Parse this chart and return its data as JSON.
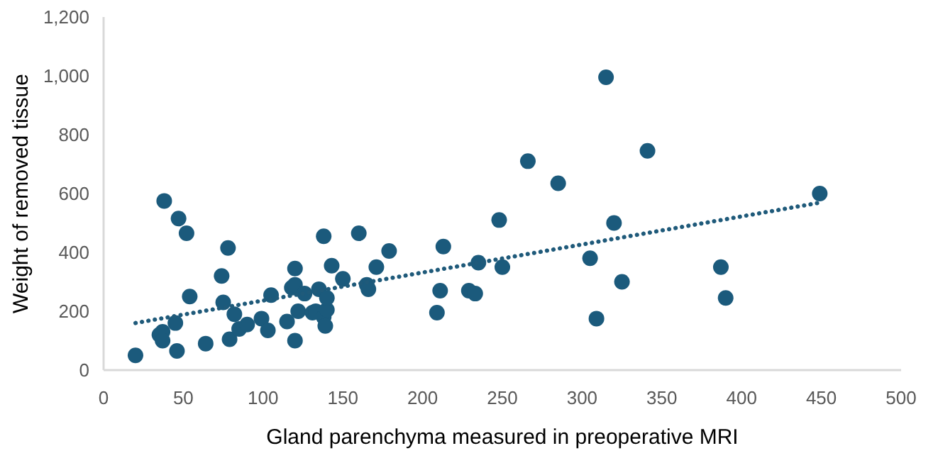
{
  "chart_data": {
    "type": "scatter",
    "xlabel": "Gland parenchyma measured in preoperative MRI",
    "ylabel": "Weight of removed tissue",
    "xlim": [
      0,
      500
    ],
    "xticks": [
      0,
      50,
      100,
      150,
      200,
      250,
      300,
      350,
      400,
      450,
      500
    ],
    "ylim": [
      0,
      1200
    ],
    "yticks": [
      0,
      {
        "value": 200,
        "label": "200"
      },
      400,
      600,
      800,
      {
        "value": 1000,
        "label": "1,000"
      },
      {
        "value": 1200,
        "label": "1,200"
      }
    ],
    "grid": false,
    "series": [
      {
        "color": "#1b5a7c",
        "marker": "circle",
        "x": [
          20,
          35,
          37,
          37,
          38,
          45,
          46,
          47,
          52,
          54,
          64,
          74,
          75,
          78,
          79,
          82,
          85,
          90,
          99,
          103,
          105,
          115,
          118,
          120,
          120,
          120,
          122,
          126,
          131,
          133,
          135,
          138,
          138,
          139,
          140,
          140,
          143,
          150,
          160,
          165,
          166,
          171,
          179,
          209,
          211,
          213,
          229,
          233,
          235,
          248,
          250,
          266,
          285,
          305,
          309,
          315,
          320,
          325,
          341,
          387,
          390,
          449
        ],
        "values": [
          50,
          120,
          130,
          100,
          575,
          160,
          65,
          515,
          465,
          250,
          90,
          320,
          230,
          415,
          105,
          190,
          140,
          155,
          175,
          135,
          255,
          165,
          280,
          290,
          345,
          100,
          200,
          260,
          195,
          200,
          275,
          455,
          180,
          150,
          205,
          245,
          355,
          310,
          465,
          290,
          275,
          350,
          405,
          195,
          270,
          420,
          270,
          260,
          365,
          510,
          350,
          710,
          635,
          380,
          175,
          995,
          500,
          300,
          745,
          350,
          245,
          600
        ]
      },
      {
        "type": "line",
        "color": "#1f5a7a",
        "marker": "none",
        "line_style": "dotted",
        "x": [
          20,
          450
        ],
        "values": [
          160,
          570
        ]
      }
    ]
  }
}
